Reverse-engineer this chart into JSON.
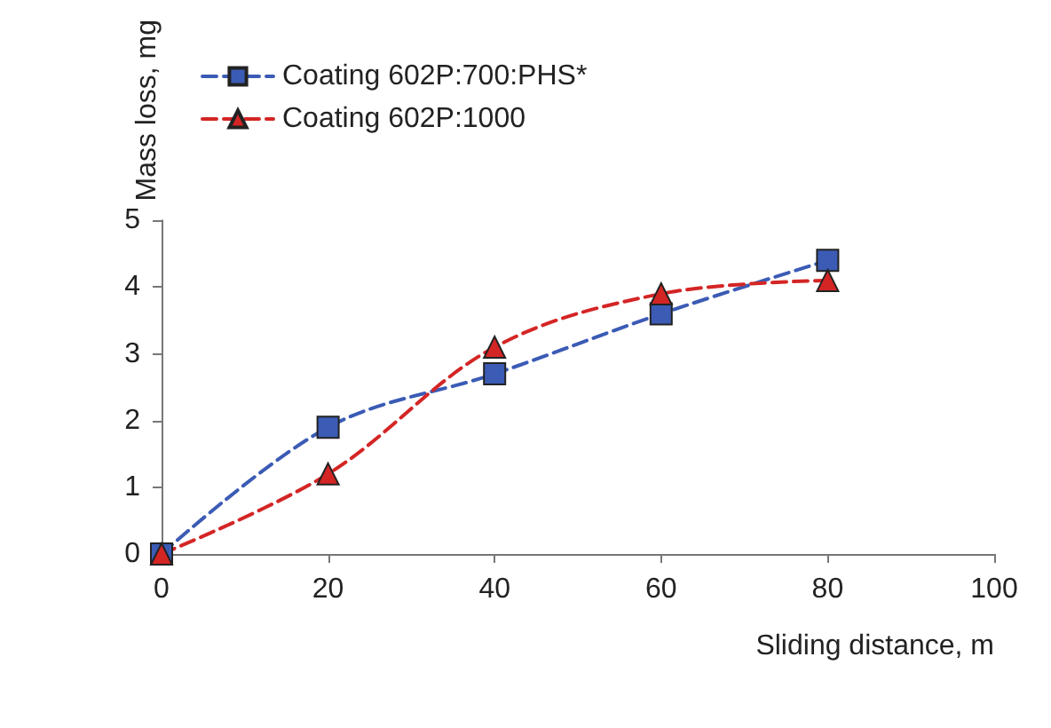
{
  "chart_data": {
    "type": "line",
    "xlabel": "Sliding distance, m",
    "ylabel": "Mass loss, mg",
    "x": [
      0,
      20,
      40,
      60,
      80
    ],
    "series": [
      {
        "name": "Coating 602P:700:PHS*",
        "color": "#3b5bb5",
        "values": [
          0,
          1.9,
          2.7,
          3.6,
          4.4
        ],
        "marker": "square"
      },
      {
        "name": "Coating 602P:1000",
        "color": "#d42525",
        "values": [
          0,
          1.2,
          3.1,
          3.9,
          4.1
        ],
        "marker": "triangle"
      }
    ],
    "xlim": [
      0,
      100
    ],
    "xticks": [
      0,
      20,
      40,
      60,
      80,
      100
    ],
    "ylim": [
      0,
      5
    ],
    "yticks": [
      0,
      1,
      2,
      3,
      4,
      5
    ],
    "grid": false,
    "legend": "top left",
    "line_style": "dashed"
  }
}
